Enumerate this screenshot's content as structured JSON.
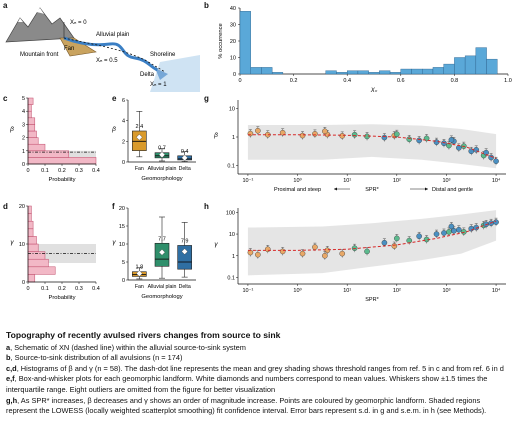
{
  "figure": {
    "panel_a": {
      "letter": "a",
      "labels": {
        "xn0": "Xₙ = 0",
        "alluvial": "Alluvial plain",
        "fan": "Fan",
        "shoreline": "Shoreline",
        "xn05": "Xₙ = 0.5",
        "mountain": "Mountain front",
        "delta": "Delta",
        "xn1": "Xₙ = 1"
      }
    },
    "panel_b": {
      "letter": "b"
    },
    "panel_c": {
      "letter": "c"
    },
    "panel_d": {
      "letter": "d"
    },
    "panel_e": {
      "letter": "e",
      "box_labels": [
        "2.4",
        "0.7",
        "0.4"
      ]
    },
    "panel_f": {
      "letter": "f",
      "box_labels": [
        "1.8",
        "7.7",
        "7.9"
      ]
    },
    "panel_g": {
      "letter": "g",
      "annot": {
        "left": "Proximal and steep",
        "mid": "SPR*",
        "right": "Distal and gentle"
      }
    },
    "panel_h": {
      "letter": "h",
      "annot": {
        "mid": "SPR*"
      }
    }
  },
  "chart_data": [
    {
      "id": "b",
      "type": "bar",
      "xlabel": "Xₙ",
      "ylabel": "% occurrence",
      "ylim": [
        0,
        40
      ],
      "yticks": [
        "0",
        "10",
        "20",
        "30",
        "40"
      ],
      "xticks": [
        "0",
        "0.2",
        "0.4",
        "0.6",
        "0.8",
        "1.0"
      ],
      "bin_width": 0.04,
      "values": [
        38,
        4,
        4,
        1,
        0,
        0,
        0,
        0,
        2,
        1,
        2,
        2,
        1,
        2,
        1,
        3,
        3,
        3,
        4,
        6,
        10,
        11,
        16,
        9
      ],
      "color": "#5aa8d8"
    },
    {
      "id": "c",
      "type": "bar",
      "orientation": "horizontal",
      "xlabel": "Probability",
      "ylabel": "β",
      "xlim": [
        0,
        0.4
      ],
      "xticks": [
        "0",
        "0.1",
        "0.2",
        "0.3",
        "0.4"
      ],
      "ylim": [
        0,
        5
      ],
      "yticks": [
        "0",
        "1",
        "2",
        "3",
        "4",
        "5"
      ],
      "bins": [
        [
          0,
          0.5,
          0.4
        ],
        [
          0.5,
          1,
          0.24
        ],
        [
          1,
          1.5,
          0.1
        ],
        [
          1.5,
          2,
          0.06
        ],
        [
          2,
          2.5,
          0.05
        ],
        [
          2.5,
          3,
          0.04
        ],
        [
          3,
          3.5,
          0.04
        ],
        [
          3.5,
          4,
          0.02
        ],
        [
          4,
          4.5,
          0.02
        ],
        [
          4.5,
          5,
          0.03
        ]
      ],
      "mean_line": 0.9,
      "grey_range": [
        0.5,
        1.0
      ]
    },
    {
      "id": "d",
      "type": "bar",
      "orientation": "horizontal",
      "xlabel": "Probability",
      "ylabel": "γ",
      "xlim": [
        0,
        0.4
      ],
      "xticks": [
        "0",
        "0.1",
        "0.2",
        "0.3",
        "0.4"
      ],
      "ylim": [
        0,
        20
      ],
      "yticks": [
        "0",
        "10",
        "20"
      ],
      "bins": [
        [
          0,
          2,
          0.04
        ],
        [
          2,
          4,
          0.16
        ],
        [
          4,
          6,
          0.12
        ],
        [
          6,
          8,
          0.1
        ],
        [
          8,
          10,
          0.06
        ],
        [
          10,
          12,
          0.05
        ],
        [
          12,
          14,
          0.03
        ],
        [
          14,
          16,
          0.03
        ],
        [
          16,
          18,
          0.02
        ],
        [
          18,
          20,
          0.02
        ]
      ],
      "mean_line": 7.5,
      "grey_range": [
        5,
        10
      ]
    },
    {
      "id": "e",
      "type": "box",
      "xlabel": "Geomorphology",
      "ylabel": "β",
      "ylim": [
        0,
        6
      ],
      "yticks": [
        "0",
        "2",
        "4",
        "6"
      ],
      "categories": [
        "Fan",
        "Alluvial plain",
        "Delta"
      ],
      "boxes": [
        {
          "q1": 1.1,
          "median": 2.0,
          "q3": 3.0,
          "lo": 0.5,
          "hi": 4.9,
          "mean": 2.4,
          "color": "#d99a2b"
        },
        {
          "q1": 0.4,
          "median": 0.6,
          "q3": 0.9,
          "lo": 0.1,
          "hi": 1.3,
          "mean": 0.7,
          "color": "#2f8f6b"
        },
        {
          "q1": 0.2,
          "median": 0.3,
          "q3": 0.6,
          "lo": 0.05,
          "hi": 1.0,
          "mean": 0.4,
          "color": "#2f6fa3"
        }
      ]
    },
    {
      "id": "f",
      "type": "box",
      "xlabel": "Geomorphology",
      "ylabel": "γ",
      "ylim": [
        0,
        20
      ],
      "yticks": [
        "0",
        "5",
        "10",
        "15",
        "20"
      ],
      "categories": [
        "Fan",
        "Alluvial plain",
        "Delta"
      ],
      "boxes": [
        {
          "q1": 1.0,
          "median": 1.5,
          "q3": 2.3,
          "lo": 0.3,
          "hi": 3.4,
          "mean": 1.8,
          "color": "#d99a2b"
        },
        {
          "q1": 3.8,
          "median": 5.8,
          "q3": 10.2,
          "lo": 0.5,
          "hi": 17.5,
          "mean": 7.7,
          "color": "#2f8f6b"
        },
        {
          "q1": 3.0,
          "median": 5.0,
          "q3": 9.6,
          "lo": 0.8,
          "hi": 16.0,
          "mean": 7.9,
          "color": "#2f6fa3"
        }
      ]
    },
    {
      "id": "g",
      "type": "scatter",
      "x_log": true,
      "y_log": true,
      "ylabel": "β",
      "xlim": [
        -1.2,
        4.2
      ],
      "ylim": [
        -1.3,
        1.3
      ],
      "xticks": [
        "10⁻¹",
        "10⁰",
        "10¹",
        "10²",
        "10³",
        "10⁴"
      ],
      "yticks": [
        "0.1",
        "1",
        "10"
      ],
      "points": [
        [
          -0.95,
          0.12,
          "fan"
        ],
        [
          -0.6,
          0.08,
          "fan"
        ],
        [
          -0.3,
          0.15,
          "fan"
        ],
        [
          0.1,
          0.05,
          "fan"
        ],
        [
          0.35,
          0.11,
          "fan"
        ],
        [
          0.6,
          0.09,
          "fan"
        ],
        [
          0.9,
          0.04,
          "fan"
        ],
        [
          1.15,
          0.08,
          "plain"
        ],
        [
          1.4,
          0.02,
          "plain"
        ],
        [
          1.75,
          -0.02,
          "delta"
        ],
        [
          1.95,
          0.05,
          "fan"
        ],
        [
          2.25,
          -0.08,
          "plain"
        ],
        [
          2.45,
          -0.12,
          "delta"
        ],
        [
          2.6,
          -0.05,
          "plain"
        ],
        [
          2.8,
          -0.18,
          "delta"
        ],
        [
          2.95,
          -0.22,
          "delta"
        ],
        [
          3.05,
          -0.3,
          "plain"
        ],
        [
          3.15,
          -0.15,
          "delta"
        ],
        [
          3.25,
          -0.38,
          "delta"
        ],
        [
          3.35,
          -0.32,
          "plain"
        ],
        [
          3.5,
          -0.5,
          "delta"
        ],
        [
          3.6,
          -0.45,
          "delta"
        ],
        [
          3.75,
          -0.65,
          "plain"
        ],
        [
          3.9,
          -0.72,
          "delta"
        ],
        [
          4.0,
          -0.85,
          "delta"
        ],
        [
          -0.8,
          0.22,
          "fan"
        ],
        [
          0.55,
          0.2,
          "fan"
        ],
        [
          2.0,
          0.1,
          "plain"
        ],
        [
          3.1,
          -0.1,
          "delta"
        ],
        [
          3.8,
          -0.55,
          "delta"
        ]
      ],
      "fit": [
        [
          -1.0,
          0.08
        ],
        [
          0.0,
          0.08
        ],
        [
          1.0,
          0.06
        ],
        [
          2.0,
          0.0
        ],
        [
          2.8,
          -0.15
        ],
        [
          3.4,
          -0.35
        ],
        [
          4.0,
          -0.75
        ]
      ],
      "band": [
        [
          -1.0,
          0.42,
          -0.8
        ],
        [
          0.5,
          0.42,
          -0.8
        ],
        [
          1.5,
          0.45,
          -0.7
        ],
        [
          2.5,
          0.4,
          -0.8
        ],
        [
          3.3,
          0.28,
          -0.95
        ],
        [
          4.0,
          0.1,
          -1.1
        ]
      ]
    },
    {
      "id": "h",
      "type": "scatter",
      "x_log": true,
      "y_log": true,
      "ylabel": "γ",
      "xlim": [
        -1.2,
        4.2
      ],
      "ylim": [
        -1.3,
        2.2
      ],
      "xticks": [
        "10⁻¹",
        "10⁰",
        "10¹",
        "10²",
        "10³",
        "10⁴"
      ],
      "yticks": [
        "0.1",
        "1",
        "10",
        "100"
      ],
      "points": [
        [
          -0.95,
          0.15,
          "fan"
        ],
        [
          -0.6,
          0.3,
          "fan"
        ],
        [
          -0.3,
          0.2,
          "fan"
        ],
        [
          0.1,
          0.1,
          "fan"
        ],
        [
          0.35,
          0.4,
          "fan"
        ],
        [
          0.6,
          0.25,
          "fan"
        ],
        [
          0.9,
          0.1,
          "fan"
        ],
        [
          1.15,
          0.35,
          "plain"
        ],
        [
          1.4,
          0.2,
          "plain"
        ],
        [
          1.75,
          0.6,
          "delta"
        ],
        [
          1.95,
          0.45,
          "fan"
        ],
        [
          2.25,
          0.7,
          "plain"
        ],
        [
          2.45,
          0.9,
          "delta"
        ],
        [
          2.6,
          0.75,
          "plain"
        ],
        [
          2.8,
          1.0,
          "delta"
        ],
        [
          2.95,
          1.05,
          "delta"
        ],
        [
          3.05,
          1.1,
          "plain"
        ],
        [
          3.15,
          1.15,
          "delta"
        ],
        [
          3.25,
          1.2,
          "delta"
        ],
        [
          3.35,
          1.1,
          "plain"
        ],
        [
          3.5,
          1.25,
          "delta"
        ],
        [
          3.6,
          1.3,
          "delta"
        ],
        [
          3.75,
          1.4,
          "plain"
        ],
        [
          3.9,
          1.5,
          "delta"
        ],
        [
          4.0,
          1.55,
          "delta"
        ],
        [
          -0.8,
          0.05,
          "fan"
        ],
        [
          0.55,
          0.0,
          "fan"
        ],
        [
          2.0,
          0.8,
          "plain"
        ],
        [
          3.1,
          1.35,
          "delta"
        ],
        [
          3.8,
          1.45,
          "delta"
        ]
      ],
      "fit": [
        [
          -1.0,
          0.25
        ],
        [
          0.0,
          0.25
        ],
        [
          1.0,
          0.3
        ],
        [
          2.0,
          0.5
        ],
        [
          2.8,
          0.8
        ],
        [
          3.4,
          1.1
        ],
        [
          4.0,
          1.6
        ]
      ],
      "band": [
        [
          -1.0,
          1.3,
          -0.9
        ],
        [
          0.5,
          1.35,
          -0.8
        ],
        [
          1.5,
          1.5,
          -0.5
        ],
        [
          2.5,
          1.7,
          -0.2
        ],
        [
          3.3,
          1.9,
          0.1
        ],
        [
          4.0,
          2.1,
          0.7
        ]
      ]
    }
  ],
  "colors": {
    "fan": "#e8a867",
    "plain": "#5cba8e",
    "delta": "#4a90c2",
    "pink_fill": "#f2b8c6",
    "pink_edge": "#c04a6a",
    "fit_line": "#d62828",
    "band": "#e0e0e0"
  },
  "caption": {
    "title": "Topography of recently avulsed rivers changes from source to sink",
    "items": [
      {
        "tag": "a",
        "text": ", Schematic of XN (dashed line) within the alluvial source-to-sink system"
      },
      {
        "tag": "b",
        "text": ", Source-to-sink distribution of all avulsions (n = 174)"
      },
      {
        "tag": "c,d",
        "text": ", Histograms of β and γ (n = 58). The dash-dot line represents the mean and grey shading shows threshold ranges from ref. 5 in c and from ref. 6 in d"
      },
      {
        "tag": "e,f",
        "text": ", Box-and-whisker plots for each geomorphic landform. White diamonds and numbers correspond to mean values. Whiskers show ±1.5 times the interquartile range. Eight outliers are omitted from the figure for better visualization"
      },
      {
        "tag": "g,h",
        "text": ", As SPR* increases, β decreases and γ shows an order of magnitude increase. Points are coloured by geomorphic landform. Shaded regions represent the LOWESS (locally weighted scatterplot smoothing) fit confidence interval. Error bars represent s.d. in g and s.e.m. in h (see Methods)."
      }
    ]
  }
}
